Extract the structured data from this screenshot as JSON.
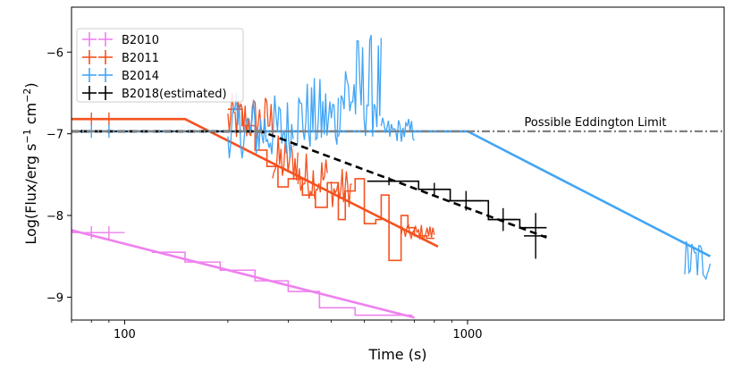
{
  "chart_data": {
    "type": "line",
    "title": "",
    "xlabel": "Time (s)",
    "ylabel_parts": [
      "Log(Flux/erg s",
      "−1",
      " cm",
      "−2",
      ")"
    ],
    "xscale": "log",
    "xlim": [
      70,
      5600
    ],
    "ylim": [
      -9.28,
      -5.45
    ],
    "x_ticks": [
      {
        "value": 100,
        "label": "100"
      },
      {
        "value": 1000,
        "label": "1000"
      }
    ],
    "y_ticks": [
      {
        "value": -6,
        "label": "−6"
      },
      {
        "value": -7,
        "label": "−7"
      },
      {
        "value": -8,
        "label": "−8"
      },
      {
        "value": -9,
        "label": "−9"
      }
    ],
    "eddington": {
      "y": -6.97,
      "label": "Possible Eddington Limit",
      "color": "#808080"
    },
    "legend": {
      "position": "upper-left",
      "entries": [
        {
          "label": "B2010",
          "color": "#ee82ee"
        },
        {
          "label": "B2011",
          "color": "#f4511e"
        },
        {
          "label": "B2014",
          "color": "#42a5f5"
        },
        {
          "label": "B2018(estimated)",
          "color": "#000000"
        }
      ]
    },
    "series": [
      {
        "name": "B2010",
        "color": "#ee82ee",
        "fit": [
          [
            70,
            -8.18
          ],
          [
            700,
            -9.25
          ]
        ],
        "steps": [
          [
            120,
            -8.45
          ],
          [
            150,
            -8.57
          ],
          [
            190,
            -8.67
          ],
          [
            240,
            -8.8
          ],
          [
            300,
            -8.93
          ],
          [
            370,
            -9.13
          ],
          [
            470,
            -9.22
          ],
          [
            690,
            -9.22
          ]
        ],
        "errorbars": [
          [
            80,
            -8.21,
            10,
            0.08
          ],
          [
            90,
            -8.21,
            10,
            0.08
          ]
        ]
      },
      {
        "name": "B2011",
        "color": "#f4511e",
        "fit": [
          [
            70,
            -6.82
          ],
          [
            150,
            -6.82
          ],
          [
            820,
            -8.38
          ]
        ],
        "steps": [
          [
            200,
            -6.7
          ],
          [
            220,
            -6.9
          ],
          [
            240,
            -7.2
          ],
          [
            260,
            -7.4
          ],
          [
            280,
            -7.65
          ],
          [
            300,
            -7.55
          ],
          [
            330,
            -7.75
          ],
          [
            360,
            -7.9
          ],
          [
            390,
            -7.6
          ],
          [
            420,
            -8.05
          ],
          [
            440,
            -7.7
          ],
          [
            470,
            -7.55
          ],
          [
            500,
            -8.1
          ],
          [
            540,
            -8.05
          ],
          [
            560,
            -7.75
          ],
          [
            590,
            -8.55
          ],
          [
            640,
            -8.0
          ],
          [
            670,
            -8.15
          ],
          [
            700,
            -8.25
          ],
          [
            760,
            -8.28
          ],
          [
            800,
            -8.28
          ]
        ],
        "noisy": [
          [
            200,
            270,
            -6.5,
            -7.1
          ],
          [
            270,
            320,
            -7.0,
            -7.6
          ],
          [
            320,
            390,
            -7.2,
            -7.8
          ],
          [
            400,
            460,
            -7.4,
            -7.9
          ],
          [
            640,
            800,
            -8.1,
            -8.3
          ]
        ],
        "errorbars": [
          [
            80,
            -6.82,
            10,
            0.08
          ],
          [
            90,
            -6.82,
            10,
            0.08
          ]
        ]
      },
      {
        "name": "B2014",
        "color": "#42a5f5",
        "fit": [
          [
            70,
            -6.97
          ],
          [
            1000,
            -6.97
          ],
          [
            5100,
            -8.5
          ]
        ],
        "noisy": [
          [
            200,
            310,
            -6.5,
            -7.3
          ],
          [
            310,
            420,
            -6.3,
            -7.2
          ],
          [
            420,
            560,
            -5.75,
            -7.05
          ],
          [
            560,
            700,
            -6.8,
            -7.1
          ],
          [
            4300,
            5100,
            -8.25,
            -8.8
          ]
        ],
        "errorbars": [
          [
            80,
            -6.97,
            10,
            0.08
          ],
          [
            90,
            -6.97,
            10,
            0.08
          ]
        ]
      },
      {
        "name": "B2018(estimated)",
        "color": "#000000",
        "fit": [
          [
            70,
            -6.97
          ],
          [
            250,
            -6.97
          ],
          [
            1700,
            -8.27
          ]
        ],
        "steps": [
          [
            510,
            -7.58
          ],
          [
            720,
            -7.68
          ],
          [
            890,
            -7.82
          ],
          [
            1100,
            -7.82
          ],
          [
            1150,
            -8.05
          ],
          [
            1380,
            -8.05
          ],
          [
            1420,
            -8.15
          ],
          [
            1700,
            -8.15
          ]
        ],
        "errorbars": [
          [
            75,
            -6.97,
            175,
            0.02
          ],
          [
            590,
            -7.58,
            80,
            0.05
          ],
          [
            800,
            -7.68,
            80,
            0.08
          ],
          [
            990,
            -7.82,
            110,
            0.12
          ],
          [
            1270,
            -8.05,
            120,
            0.14
          ],
          [
            1580,
            -8.25,
            120,
            0.28
          ]
        ]
      }
    ]
  }
}
